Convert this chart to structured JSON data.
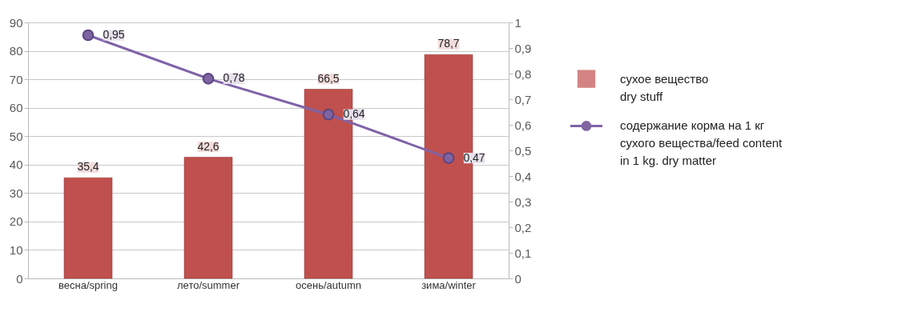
{
  "chart_data": {
    "type": "bar",
    "categories": [
      "весна/spring",
      "лето/summer",
      "осень/autumn",
      "зима/winter"
    ],
    "series": [
      {
        "name": "сухое вещество\ndry stuff",
        "color": "#c0504d",
        "values": [
          35.4,
          42.6,
          66.5,
          78.7
        ],
        "value_labels": [
          "35,4",
          "42,6",
          "66,5",
          "78,7"
        ]
      },
      {
        "name": "содержание корма на 1 кг\nсухого вещества/feed content\nin 1 kg. dry matter",
        "type": "line",
        "axis": "y2",
        "color": "#7f63a8",
        "values": [
          0.95,
          0.78,
          0.64,
          0.47
        ],
        "value_labels": [
          "0,95",
          "0,78",
          "0,64",
          "0,47"
        ]
      }
    ],
    "ylim": [
      0,
      90
    ],
    "yticks": [
      0,
      10,
      20,
      30,
      40,
      50,
      60,
      70,
      80,
      90
    ],
    "y2lim": [
      0,
      1
    ],
    "y2ticks": [
      0,
      {
        "value": 0.1,
        "label": "0,1"
      },
      {
        "value": 0.2,
        "label": "0,2"
      },
      {
        "value": 0.3,
        "label": "0,3"
      },
      {
        "value": 0.4,
        "label": "0,4"
      },
      {
        "value": 0.5,
        "label": "0,5"
      },
      {
        "value": 0.6,
        "label": "0,6"
      },
      {
        "value": 0.7,
        "label": "0,7"
      },
      {
        "value": 0.8,
        "label": "0,8"
      },
      {
        "value": 0.9,
        "label": "0,9"
      },
      1
    ],
    "grid": "y",
    "legend": "right",
    "marker": "circle"
  }
}
